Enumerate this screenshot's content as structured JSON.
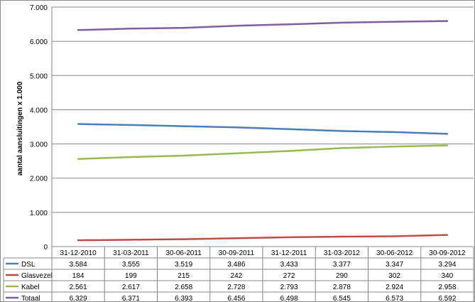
{
  "chart_data": {
    "type": "line",
    "title": "",
    "xlabel": "",
    "ylabel": "aantal aansluitingen x 1.000",
    "ylim": [
      0,
      7000
    ],
    "ytick_labels": [
      "0",
      "1.000",
      "2.000",
      "3.000",
      "4.000",
      "5.000",
      "6.000",
      "7.000"
    ],
    "yticks": [
      0,
      1000,
      2000,
      3000,
      4000,
      5000,
      6000,
      7000
    ],
    "grid": true,
    "legend": "data-table",
    "categories": [
      "31-12-2010",
      "31-03-2011",
      "30-06-2011",
      "30-09-2011",
      "31-12-2011",
      "31-03-2012",
      "30-06-2012",
      "30-09-2012"
    ],
    "series": [
      {
        "name": "DSL",
        "color": "#4a7ebb",
        "values": [
          3584,
          3555,
          3519,
          3486,
          3433,
          3377,
          3347,
          3294
        ],
        "labels": [
          "3.584",
          "3.555",
          "3.519",
          "3.486",
          "3.433",
          "3.377",
          "3.347",
          "3.294"
        ]
      },
      {
        "name": "Glasvezel",
        "color": "#be4b48",
        "values": [
          184,
          199,
          215,
          242,
          272,
          290,
          302,
          340
        ],
        "labels": [
          "184",
          "199",
          "215",
          "242",
          "272",
          "290",
          "302",
          "340"
        ]
      },
      {
        "name": "Kabel",
        "color": "#98b954",
        "values": [
          2561,
          2617,
          2658,
          2728,
          2793,
          2878,
          2924,
          2958
        ],
        "labels": [
          "2.561",
          "2.617",
          "2.658",
          "2.728",
          "2.793",
          "2.878",
          "2.924",
          "2.958"
        ]
      },
      {
        "name": "Totaal",
        "color": "#7d5fa0",
        "values": [
          6329,
          6371,
          6393,
          6456,
          6498,
          6545,
          6573,
          6592
        ],
        "labels": [
          "6.329",
          "6.371",
          "6.393",
          "6.456",
          "6.498",
          "6.545",
          "6.573",
          "6.592"
        ]
      }
    ]
  }
}
